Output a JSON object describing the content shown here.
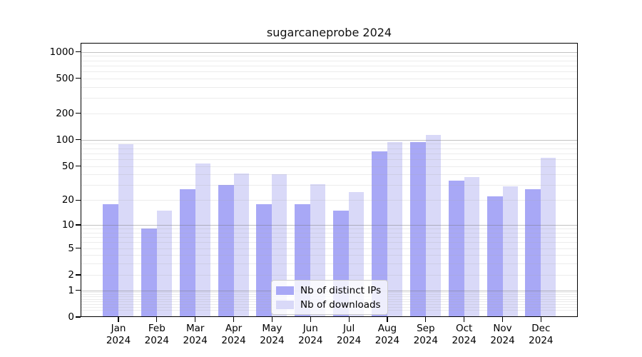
{
  "title": "sugarcaneprobe 2024",
  "colors": {
    "ips": "#a8a8f6",
    "downloads": "#d9d9f8",
    "major_grid": "#b0b0b0",
    "minor_grid": "#e8e8e8",
    "spine": "#000000",
    "background": "#ffffff"
  },
  "legend": {
    "items": [
      {
        "label": "Nb of distinct IPs",
        "color_key": "ips"
      },
      {
        "label": "Nb of downloads",
        "color_key": "downloads"
      }
    ],
    "position": "lower center"
  },
  "x_axis": {
    "months": [
      "Jan",
      "Feb",
      "Mar",
      "Apr",
      "May",
      "Jun",
      "Jul",
      "Aug",
      "Sep",
      "Oct",
      "Nov",
      "Dec"
    ],
    "year": "2024"
  },
  "y_axis": {
    "tick_values": [
      0,
      1,
      2,
      5,
      10,
      20,
      50,
      100,
      200,
      500,
      1000
    ]
  },
  "chart_data": {
    "type": "bar",
    "title": "sugarcaneprobe 2024",
    "categories": [
      "Jan 2024",
      "Feb 2024",
      "Mar 2024",
      "Apr 2024",
      "May 2024",
      "Jun 2024",
      "Jul 2024",
      "Aug 2024",
      "Sep 2024",
      "Oct 2024",
      "Nov 2024",
      "Dec 2024"
    ],
    "series": [
      {
        "name": "Nb of distinct IPs",
        "values": [
          18,
          9,
          27,
          30,
          18,
          18,
          15,
          74,
          95,
          34,
          22,
          27
        ]
      },
      {
        "name": "Nb of downloads",
        "values": [
          89,
          15,
          54,
          41,
          40,
          31,
          25,
          94,
          113,
          37,
          29,
          62
        ]
      }
    ],
    "xlabel": "",
    "ylabel": "",
    "yscale": "log1p",
    "y_ticks": [
      0,
      1,
      2,
      5,
      10,
      20,
      50,
      100,
      200,
      500,
      1000
    ],
    "ylim": [
      0,
      1220
    ],
    "grid": true,
    "legend_position": "lower center"
  }
}
